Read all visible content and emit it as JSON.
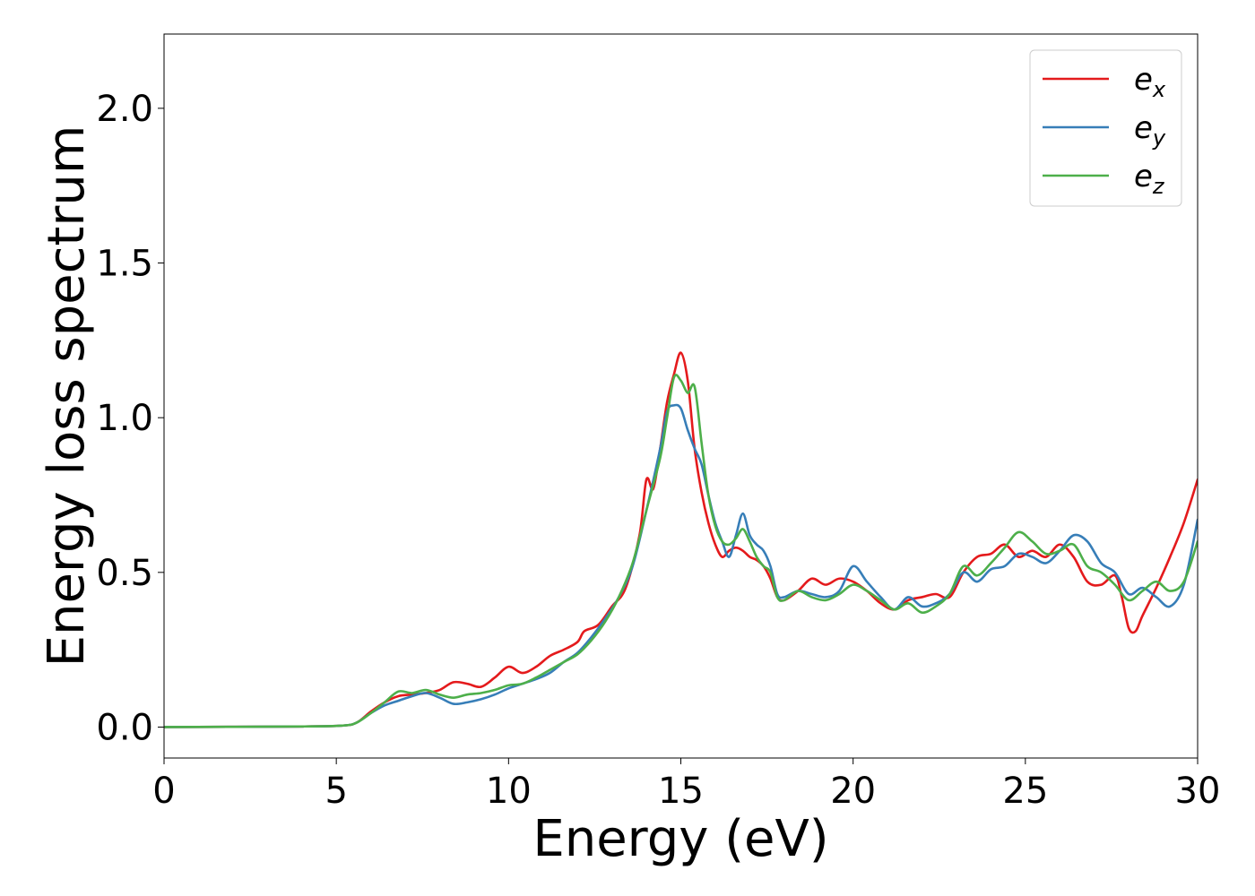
{
  "chart_data": {
    "type": "line",
    "xlabel": "Energy (eV)",
    "ylabel": "Energy loss spectrum",
    "xlim": [
      0,
      30
    ],
    "ylim": [
      -0.1,
      2.24
    ],
    "xticks": [
      0,
      5,
      10,
      15,
      20,
      25,
      30
    ],
    "yticks": [
      0.0,
      0.5,
      1.0,
      1.5,
      2.0
    ],
    "xtick_labels": [
      "0",
      "5",
      "10",
      "15",
      "20",
      "25",
      "30"
    ],
    "ytick_labels": [
      "0.0",
      "0.5",
      "1.0",
      "1.5",
      "2.0"
    ],
    "grid": false,
    "legend_position": "top-right",
    "series": [
      {
        "name": "e_x",
        "name_base": "e",
        "name_sub": "x",
        "color": "#e41a1c",
        "x": [
          0,
          4,
          5.2,
          5.6,
          6.0,
          6.4,
          6.8,
          7.2,
          7.6,
          8.0,
          8.4,
          8.8,
          9.2,
          9.6,
          10.0,
          10.4,
          10.8,
          11.2,
          11.6,
          12.0,
          12.2,
          12.6,
          13.0,
          13.4,
          13.8,
          14.0,
          14.2,
          14.4,
          14.6,
          14.8,
          15.0,
          15.2,
          15.4,
          15.6,
          15.8,
          16.0,
          16.2,
          16.4,
          16.6,
          16.8,
          17.0,
          17.2,
          17.4,
          17.6,
          17.8,
          18.0,
          18.4,
          18.8,
          19.2,
          19.6,
          20.0,
          20.4,
          20.8,
          21.2,
          21.6,
          22.0,
          22.4,
          22.8,
          23.2,
          23.6,
          24.0,
          24.4,
          24.8,
          25.2,
          25.6,
          26.0,
          26.4,
          26.8,
          27.2,
          27.6,
          27.8,
          28.0,
          28.2,
          28.4,
          28.8,
          29.2,
          29.6,
          30.0
        ],
        "y": [
          0.0,
          0.002,
          0.005,
          0.015,
          0.05,
          0.08,
          0.1,
          0.105,
          0.11,
          0.12,
          0.145,
          0.14,
          0.13,
          0.16,
          0.195,
          0.175,
          0.195,
          0.23,
          0.25,
          0.275,
          0.31,
          0.33,
          0.39,
          0.45,
          0.62,
          0.8,
          0.77,
          0.9,
          1.05,
          1.14,
          1.21,
          1.12,
          0.9,
          0.76,
          0.66,
          0.59,
          0.55,
          0.57,
          0.58,
          0.57,
          0.55,
          0.54,
          0.52,
          0.48,
          0.42,
          0.41,
          0.44,
          0.48,
          0.46,
          0.48,
          0.47,
          0.44,
          0.4,
          0.38,
          0.41,
          0.42,
          0.43,
          0.42,
          0.5,
          0.55,
          0.56,
          0.59,
          0.55,
          0.57,
          0.55,
          0.59,
          0.55,
          0.47,
          0.46,
          0.49,
          0.42,
          0.32,
          0.31,
          0.36,
          0.45,
          0.55,
          0.66,
          0.8
        ]
      },
      {
        "name": "e_y",
        "name_base": "e",
        "name_sub": "y",
        "color": "#377eb8",
        "x": [
          0,
          4,
          5.2,
          5.6,
          6.0,
          6.4,
          6.8,
          7.2,
          7.6,
          8.0,
          8.4,
          8.8,
          9.2,
          9.6,
          10.0,
          10.4,
          10.8,
          11.2,
          11.6,
          12.0,
          12.4,
          12.8,
          13.2,
          13.6,
          14.0,
          14.4,
          14.6,
          14.8,
          15.0,
          15.2,
          15.4,
          15.6,
          15.8,
          16.0,
          16.2,
          16.4,
          16.6,
          16.8,
          17.0,
          17.2,
          17.4,
          17.6,
          17.8,
          18.0,
          18.4,
          18.8,
          19.2,
          19.6,
          20.0,
          20.4,
          20.8,
          21.2,
          21.6,
          22.0,
          22.4,
          22.8,
          23.2,
          23.6,
          24.0,
          24.4,
          24.8,
          25.2,
          25.6,
          26.0,
          26.4,
          26.8,
          27.2,
          27.6,
          28.0,
          28.4,
          28.8,
          29.2,
          29.6,
          30.0
        ],
        "y": [
          0.0,
          0.002,
          0.005,
          0.015,
          0.045,
          0.07,
          0.085,
          0.1,
          0.11,
          0.095,
          0.075,
          0.08,
          0.09,
          0.105,
          0.125,
          0.14,
          0.155,
          0.175,
          0.21,
          0.24,
          0.29,
          0.35,
          0.42,
          0.52,
          0.7,
          0.9,
          1.02,
          1.04,
          1.03,
          0.96,
          0.9,
          0.85,
          0.75,
          0.66,
          0.6,
          0.55,
          0.62,
          0.69,
          0.62,
          0.59,
          0.57,
          0.52,
          0.43,
          0.42,
          0.44,
          0.43,
          0.42,
          0.44,
          0.52,
          0.47,
          0.42,
          0.38,
          0.42,
          0.39,
          0.4,
          0.43,
          0.5,
          0.47,
          0.51,
          0.52,
          0.56,
          0.55,
          0.53,
          0.57,
          0.62,
          0.6,
          0.53,
          0.5,
          0.43,
          0.45,
          0.42,
          0.39,
          0.46,
          0.67
        ]
      },
      {
        "name": "e_z",
        "name_base": "e",
        "name_sub": "z",
        "color": "#4daf4a",
        "x": [
          0,
          4,
          5.2,
          5.6,
          6.0,
          6.4,
          6.8,
          7.2,
          7.6,
          8.0,
          8.4,
          8.8,
          9.2,
          9.6,
          10.0,
          10.4,
          10.8,
          11.2,
          11.6,
          12.0,
          12.4,
          12.8,
          13.2,
          13.6,
          14.0,
          14.4,
          14.6,
          14.8,
          15.0,
          15.2,
          15.4,
          15.6,
          15.8,
          16.0,
          16.2,
          16.4,
          16.6,
          16.8,
          17.0,
          17.2,
          17.4,
          17.6,
          17.8,
          18.0,
          18.4,
          18.8,
          19.2,
          19.6,
          20.0,
          20.4,
          20.8,
          21.2,
          21.6,
          22.0,
          22.4,
          22.8,
          23.2,
          23.6,
          24.0,
          24.4,
          24.8,
          25.2,
          25.6,
          26.0,
          26.4,
          26.8,
          27.2,
          27.6,
          28.0,
          28.4,
          28.8,
          29.2,
          29.6,
          30.0
        ],
        "y": [
          0.0,
          0.002,
          0.005,
          0.015,
          0.045,
          0.08,
          0.115,
          0.11,
          0.12,
          0.105,
          0.095,
          0.105,
          0.11,
          0.12,
          0.135,
          0.14,
          0.16,
          0.185,
          0.21,
          0.235,
          0.28,
          0.34,
          0.42,
          0.53,
          0.7,
          0.87,
          1.0,
          1.13,
          1.12,
          1.08,
          1.1,
          0.92,
          0.75,
          0.65,
          0.6,
          0.59,
          0.61,
          0.64,
          0.6,
          0.55,
          0.52,
          0.5,
          0.42,
          0.41,
          0.44,
          0.42,
          0.41,
          0.43,
          0.46,
          0.44,
          0.41,
          0.38,
          0.4,
          0.37,
          0.39,
          0.43,
          0.52,
          0.49,
          0.53,
          0.58,
          0.63,
          0.6,
          0.56,
          0.57,
          0.59,
          0.52,
          0.5,
          0.46,
          0.41,
          0.44,
          0.47,
          0.44,
          0.47,
          0.6
        ]
      }
    ]
  }
}
